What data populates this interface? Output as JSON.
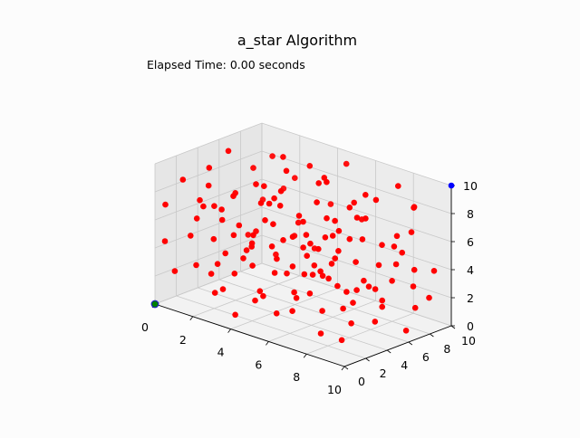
{
  "figure": {
    "title": "a_star Algorithm",
    "elapsed": "Elapsed Time: 0.00 seconds"
  },
  "chart_data": {
    "type": "scatter",
    "projection": "3d",
    "title": "a_star Algorithm",
    "xlabel": "",
    "ylabel": "",
    "zlabel": "",
    "xlim": [
      0,
      10
    ],
    "ylim": [
      0,
      10
    ],
    "zlim": [
      0,
      10
    ],
    "xticks": [
      0,
      2,
      4,
      6,
      8,
      10
    ],
    "yticks": [
      0,
      2,
      4,
      6,
      8,
      10
    ],
    "zticks": [
      0,
      2,
      4,
      6,
      8,
      10
    ],
    "grid": true,
    "colors": {
      "obstacle": "#ff0000",
      "start": "#008000",
      "start_edge": "#1f1fbf",
      "goal": "#0000ff"
    },
    "start": [
      0,
      0,
      0
    ],
    "goal": [
      10,
      10,
      10
    ],
    "series": [
      {
        "role": "obstacles",
        "color": "#ff0000",
        "points": [
          [
            0.4,
            1.9,
            8.5
          ],
          [
            1.0,
            3.3,
            9.2
          ],
          [
            0.6,
            5.8,
            9.5
          ],
          [
            0.9,
            7.6,
            7.9
          ],
          [
            1.2,
            2.4,
            6.8
          ],
          [
            1.6,
            4.5,
            7.1
          ],
          [
            0.8,
            6.1,
            6.5
          ],
          [
            1.4,
            8.5,
            8.7
          ],
          [
            2.1,
            1.3,
            9.0
          ],
          [
            1.8,
            3.1,
            5.9
          ],
          [
            2.4,
            5.2,
            8.1
          ],
          [
            2.7,
            7.2,
            9.6
          ],
          [
            2.3,
            9.0,
            7.4
          ],
          [
            3.2,
            2.2,
            6.4
          ],
          [
            3.5,
            4.0,
            8.8
          ],
          [
            3.1,
            6.3,
            7.6
          ],
          [
            3.6,
            8.1,
            9.1
          ],
          [
            4.2,
            1.6,
            5.5
          ],
          [
            4.0,
            3.6,
            7.9
          ],
          [
            4.5,
            5.5,
            6.7
          ],
          [
            4.3,
            7.7,
            8.3
          ],
          [
            4.8,
            9.4,
            9.4
          ],
          [
            5.2,
            2.5,
            8.6
          ],
          [
            5.5,
            4.4,
            6.1
          ],
          [
            5.1,
            6.8,
            9.3
          ],
          [
            5.6,
            8.7,
            7.2
          ],
          [
            6.2,
            1.9,
            7.0
          ],
          [
            6.4,
            3.8,
            9.0
          ],
          [
            6.0,
            6.0,
            5.8
          ],
          [
            6.6,
            8.0,
            8.4
          ],
          [
            7.1,
            2.7,
            6.3
          ],
          [
            7.4,
            5.1,
            8.7
          ],
          [
            7.0,
            7.3,
            7.1
          ],
          [
            7.7,
            9.1,
            9.2
          ],
          [
            8.2,
            1.4,
            8.0
          ],
          [
            8.4,
            3.9,
            5.6
          ],
          [
            8.0,
            6.5,
            9.1
          ],
          [
            8.8,
            8.4,
            6.6
          ],
          [
            9.2,
            2.6,
            9.5
          ],
          [
            9.5,
            5.8,
            7.4
          ],
          [
            0.3,
            2.8,
            4.2
          ],
          [
            0.7,
            5.0,
            5.6
          ],
          [
            1.1,
            7.5,
            3.5
          ],
          [
            1.5,
            1.2,
            3.1
          ],
          [
            1.9,
            4.0,
            4.6
          ],
          [
            2.2,
            6.4,
            5.1
          ],
          [
            2.6,
            8.8,
            4.4
          ],
          [
            2.9,
            2.3,
            2.8
          ],
          [
            3.3,
            5.1,
            4.1
          ],
          [
            3.7,
            7.3,
            5.4
          ],
          [
            4.1,
            1.0,
            4.8
          ],
          [
            4.4,
            3.4,
            3.2
          ],
          [
            4.7,
            6.2,
            4.6
          ],
          [
            5.0,
            8.3,
            3.6
          ],
          [
            5.3,
            2.0,
            5.0
          ],
          [
            5.7,
            4.8,
            3.9
          ],
          [
            6.1,
            7.4,
            5.2
          ],
          [
            6.5,
            1.5,
            3.3
          ],
          [
            6.9,
            4.3,
            4.7
          ],
          [
            7.3,
            6.6,
            3.0
          ],
          [
            7.6,
            8.9,
            4.9
          ],
          [
            8.0,
            2.9,
            4.0
          ],
          [
            8.3,
            5.3,
            3.4
          ],
          [
            8.7,
            7.7,
            5.3
          ],
          [
            9.1,
            1.8,
            4.4
          ],
          [
            9.4,
            4.6,
            3.1
          ],
          [
            9.8,
            6.9,
            4.8
          ],
          [
            9.6,
            9.1,
            4.0
          ],
          [
            0.5,
            9.2,
            5.0
          ],
          [
            2.0,
            9.5,
            3.0
          ],
          [
            0.2,
            1.5,
            2.0
          ],
          [
            0.6,
            4.2,
            1.2
          ],
          [
            1.0,
            6.8,
            2.3
          ],
          [
            1.3,
            9.0,
            1.5
          ],
          [
            1.7,
            2.6,
            0.8
          ],
          [
            2.1,
            5.4,
            2.1
          ],
          [
            2.5,
            7.9,
            1.0
          ],
          [
            2.8,
            1.4,
            1.9
          ],
          [
            3.2,
            3.7,
            0.6
          ],
          [
            3.6,
            6.5,
            2.4
          ],
          [
            4.0,
            8.6,
            1.3
          ],
          [
            4.3,
            2.2,
            2.2
          ],
          [
            4.7,
            4.9,
            1.1
          ],
          [
            5.1,
            7.2,
            2.0
          ],
          [
            5.4,
            9.3,
            0.7
          ],
          [
            5.8,
            1.1,
            1.6
          ],
          [
            6.2,
            3.5,
            2.5
          ],
          [
            6.6,
            5.9,
            0.9
          ],
          [
            7.0,
            8.2,
            1.8
          ],
          [
            7.4,
            2.4,
            0.5
          ],
          [
            7.8,
            4.7,
            2.2
          ],
          [
            8.1,
            6.9,
            1.4
          ],
          [
            8.5,
            9.1,
            2.4
          ],
          [
            8.9,
            1.7,
            0.9
          ],
          [
            9.3,
            4.1,
            1.7
          ],
          [
            9.7,
            6.3,
            0.6
          ],
          [
            9.0,
            8.4,
            1.3
          ],
          [
            3.9,
            0.6,
            0.8
          ],
          [
            6.8,
            0.8,
            2.3
          ],
          [
            1.5,
            3.2,
            2.6
          ],
          [
            3.0,
            4.6,
            7.2
          ],
          [
            4.6,
            2.9,
            6.9
          ],
          [
            6.3,
            4.9,
            7.5
          ],
          [
            7.9,
            3.2,
            7.8
          ],
          [
            2.4,
            6.9,
            6.6
          ],
          [
            5.9,
            5.6,
            9.7
          ],
          [
            3.8,
            9.7,
            6.0
          ],
          [
            8.6,
            6.0,
            6.3
          ],
          [
            1.2,
            9.9,
            5.9
          ],
          [
            9.9,
            3.4,
            6.2
          ],
          [
            0.9,
            3.9,
            3.9
          ],
          [
            2.7,
            1.8,
            4.3
          ],
          [
            4.9,
            0.4,
            6.4
          ],
          [
            6.7,
            2.1,
            4.5
          ],
          [
            8.4,
            0.6,
            5.9
          ],
          [
            9.8,
            1.0,
            2.7
          ],
          [
            0.4,
            8.0,
            2.8
          ],
          [
            3.4,
            8.9,
            2.9
          ],
          [
            5.5,
            9.6,
            5.7
          ],
          [
            7.2,
            9.8,
            3.2
          ],
          [
            8.3,
            9.5,
            7.8
          ],
          [
            9.4,
            7.6,
            8.9
          ],
          [
            1.7,
            0.9,
            6.6
          ],
          [
            2.2,
            0.3,
            8.3
          ],
          [
            0.1,
            0.8,
            6.9
          ],
          [
            0.3,
            0.4,
            4.5
          ],
          [
            5.6,
            0.2,
            3.0
          ],
          [
            7.6,
            0.4,
            7.3
          ],
          [
            9.0,
            0.9,
            7.0
          ],
          [
            9.9,
            8.1,
            2.5
          ],
          [
            4.4,
            4.2,
            5.3
          ],
          [
            5.2,
            5.0,
            4.3
          ],
          [
            6.0,
            6.2,
            6.8
          ],
          [
            3.5,
            3.0,
            5.6
          ],
          [
            7.0,
            7.0,
            5.7
          ],
          [
            2.0,
            2.0,
            7.3
          ],
          [
            8.0,
            8.0,
            2.9
          ],
          [
            6.8,
            3.6,
            1.5
          ],
          [
            3.1,
            6.8,
            8.9
          ],
          [
            5.0,
            5.9,
            2.6
          ]
        ]
      },
      {
        "role": "start",
        "color": "#008000",
        "points": [
          [
            0,
            0,
            0
          ]
        ]
      },
      {
        "role": "goal",
        "color": "#0000ff",
        "points": [
          [
            10,
            10,
            10
          ]
        ]
      }
    ]
  }
}
